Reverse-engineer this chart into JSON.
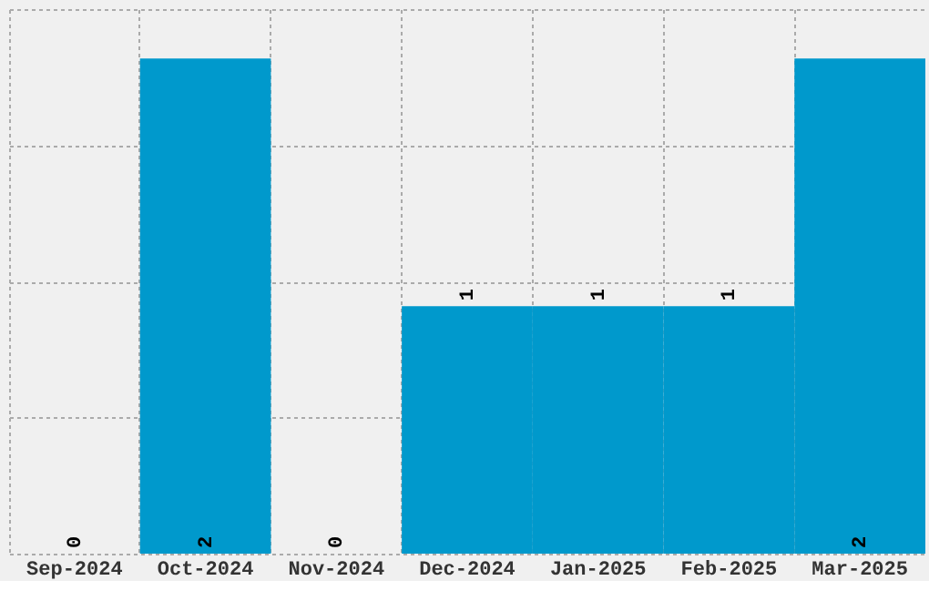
{
  "chart_data": {
    "type": "bar",
    "categories": [
      "Sep-2024",
      "Oct-2024",
      "Nov-2024",
      "Dec-2024",
      "Jan-2025",
      "Feb-2025",
      "Mar-2025"
    ],
    "values": [
      0,
      2,
      0,
      1,
      1,
      1,
      2
    ],
    "color": "#0099cc",
    "ylim": [
      0,
      2.2
    ],
    "yticks": [
      {
        "value": 0,
        "label": null
      },
      {
        "value": 0.55,
        "label": null
      },
      {
        "value": 1.1,
        "label": null
      },
      {
        "value": 1.65,
        "label": null
      },
      {
        "value": 2.2,
        "label": null
      }
    ],
    "grid": true,
    "tick_labels": "x",
    "data_labels": true
  }
}
